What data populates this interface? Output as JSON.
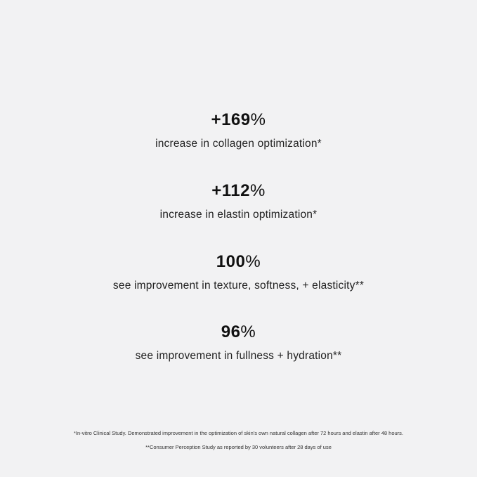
{
  "stats": [
    {
      "value": "+169",
      "unit": "%",
      "description": "increase in collagen optimization*"
    },
    {
      "value": "+112",
      "unit": "%",
      "description": "increase in elastin optimization*"
    },
    {
      "value": "100",
      "unit": "%",
      "description": "see improvement in texture, softness, + elasticity**"
    },
    {
      "value": "96",
      "unit": "%",
      "description": "see improvement in fullness + hydration**"
    }
  ],
  "footnotes": [
    "*In-vitro Clinical Study. Demonstrated improvement in the optimization of skin's own natural collagen after 72 hours and elastin after 48 hours.",
    "**Consumer Perception Study as reported by 30 volunteers after 28 days of use"
  ]
}
